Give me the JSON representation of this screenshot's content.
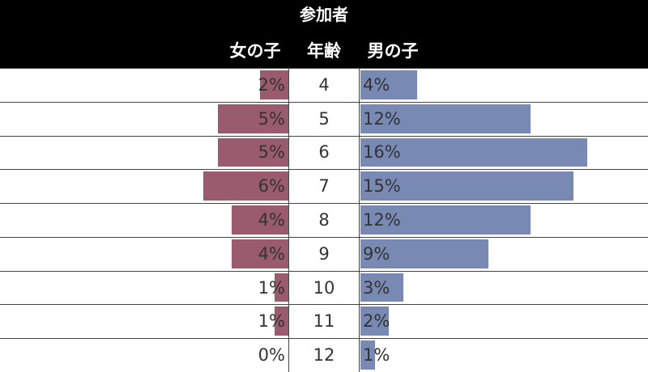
{
  "chart_data": {
    "type": "bar",
    "title": "参加者",
    "headers": {
      "female": "女の子",
      "age": "年齢",
      "male": "男の子"
    },
    "categories": [
      "4",
      "5",
      "6",
      "7",
      "8",
      "9",
      "10",
      "11",
      "12"
    ],
    "series": [
      {
        "name": "女の子",
        "values": [
          2,
          5,
          5,
          6,
          4,
          4,
          1,
          1,
          0
        ],
        "labels": [
          "2%",
          "5%",
          "5%",
          "6%",
          "4%",
          "4%",
          "1%",
          "1%",
          "0%"
        ],
        "color": "#9a5b6e"
      },
      {
        "name": "男の子",
        "values": [
          4,
          12,
          16,
          15,
          12,
          9,
          3,
          2,
          1
        ],
        "labels": [
          "4%",
          "12%",
          "16%",
          "15%",
          "12%",
          "9%",
          "3%",
          "2%",
          "1%"
        ],
        "color": "#7889b4"
      }
    ],
    "value_unit": "%"
  }
}
